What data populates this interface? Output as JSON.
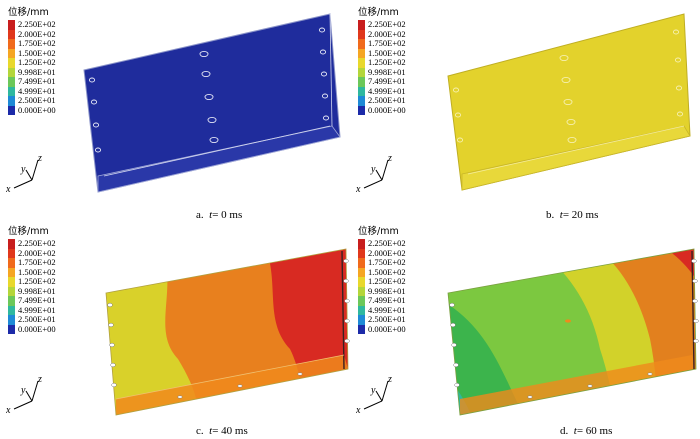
{
  "legend": {
    "title": "位移/mm",
    "values": [
      "2.250E+02",
      "2.000E+02",
      "1.750E+02",
      "1.500E+02",
      "1.250E+02",
      "9.998E+01",
      "7.499E+01",
      "4.999E+01",
      "2.500E+01",
      "0.000E+00"
    ],
    "colors": [
      "#c81e1e",
      "#e0381c",
      "#f06a1c",
      "#f5a623",
      "#e8d82c",
      "#b4d63a",
      "#6cc85a",
      "#2fb8a0",
      "#1e8ad6",
      "#1c2aa8"
    ]
  },
  "axes": {
    "x": "x",
    "y": "y",
    "z": "z"
  },
  "panels": [
    {
      "id": "a",
      "caption_prefix": "a.",
      "var": "t",
      "eq": "= 0",
      "unit": "ms"
    },
    {
      "id": "b",
      "caption_prefix": "b.",
      "var": "t",
      "eq": "= 20",
      "unit": "ms"
    },
    {
      "id": "c",
      "caption_prefix": "c.",
      "var": "t",
      "eq": "= 40",
      "unit": "ms"
    },
    {
      "id": "d",
      "caption_prefix": "d.",
      "var": "t",
      "eq": "= 60",
      "unit": "ms"
    }
  ]
}
